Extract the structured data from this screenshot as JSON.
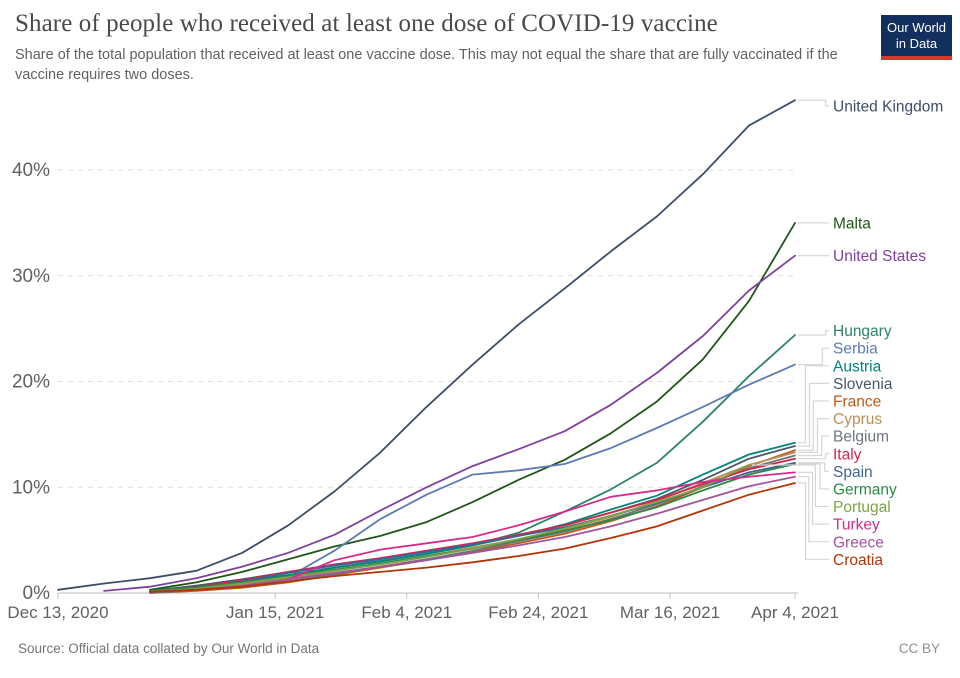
{
  "header": {
    "title": "Share of people who received at least one dose of COVID-19 vaccine",
    "subtitle": "Share of the total population that received at least one vaccine dose. This may not equal the share that are fully vaccinated if the vaccine requires two doses.",
    "logo": {
      "line1": "Our World",
      "line2": "in Data",
      "bg_color": "#12305E",
      "accent_color": "#D7382C"
    }
  },
  "chart_data": {
    "type": "line",
    "title": "Share of people who received at least one dose of COVID-19 vaccine",
    "xlabel": "",
    "ylabel": "",
    "ylim": [
      0,
      47
    ],
    "grid": "horizontal-dashed",
    "legend_position": "right-edge-labels",
    "x_days": [
      0,
      7,
      14,
      21,
      28,
      35,
      42,
      49,
      56,
      63,
      70,
      77,
      84,
      91,
      98,
      105,
      112
    ],
    "x_ticks": [
      {
        "label": "Dec 13, 2020",
        "day": 0
      },
      {
        "label": "Jan 15, 2021",
        "day": 33
      },
      {
        "label": "Feb 4, 2021",
        "day": 53
      },
      {
        "label": "Feb 24, 2021",
        "day": 73
      },
      {
        "label": "Mar 16, 2021",
        "day": 93
      },
      {
        "label": "Apr 4, 2021",
        "day": 112
      }
    ],
    "y_ticks": [
      {
        "label": "0%",
        "value": 0
      },
      {
        "label": "10%",
        "value": 10
      },
      {
        "label": "20%",
        "value": 20
      },
      {
        "label": "30%",
        "value": 30
      },
      {
        "label": "40%",
        "value": 40
      }
    ],
    "series": [
      {
        "name": "United Kingdom",
        "color": "#3C4E66",
        "values": [
          0.3,
          0.9,
          1.4,
          2.1,
          3.8,
          6.4,
          9.6,
          13.3,
          17.6,
          21.6,
          25.4,
          28.8,
          32.3,
          35.6,
          39.6,
          44.2,
          46.6
        ]
      },
      {
        "name": "Malta",
        "color": "#1F5717",
        "values": [
          null,
          null,
          0.3,
          1.0,
          2.0,
          3.2,
          4.4,
          5.4,
          6.7,
          8.6,
          10.7,
          12.6,
          15.1,
          18.1,
          22.1,
          27.6,
          35.0
        ]
      },
      {
        "name": "United States",
        "color": "#8040A0",
        "values": [
          null,
          0.2,
          0.6,
          1.4,
          2.5,
          3.8,
          5.5,
          7.8,
          10.0,
          12.0,
          13.6,
          15.3,
          17.8,
          20.8,
          24.3,
          28.6,
          31.9
        ]
      },
      {
        "name": "Hungary",
        "color": "#2C8465",
        "values": [
          null,
          null,
          0.2,
          0.6,
          1.1,
          1.7,
          2.4,
          3.0,
          3.7,
          4.5,
          5.7,
          7.7,
          9.8,
          12.3,
          16.2,
          20.5,
          24.4
        ]
      },
      {
        "name": "Serbia",
        "color": "#5E7CB2",
        "values": [
          null,
          null,
          0.2,
          0.5,
          0.8,
          1.5,
          4.0,
          7.0,
          9.3,
          11.2,
          11.6,
          12.2,
          13.7,
          15.6,
          17.6,
          19.7,
          21.6
        ]
      },
      {
        "name": "Austria",
        "color": "#00847E",
        "values": [
          null,
          null,
          0.2,
          0.6,
          1.1,
          1.7,
          2.4,
          3.0,
          3.7,
          4.5,
          5.4,
          6.5,
          7.9,
          9.2,
          11.2,
          13.1,
          14.2
        ]
      },
      {
        "name": "Slovenia",
        "color": "#4B5966",
        "values": [
          null,
          null,
          0.2,
          0.7,
          1.3,
          2.0,
          2.6,
          3.2,
          3.9,
          4.6,
          5.5,
          6.4,
          7.6,
          8.9,
          10.7,
          12.7,
          13.9
        ]
      },
      {
        "name": "France",
        "color": "#C05917",
        "values": [
          null,
          null,
          0.0,
          0.2,
          0.5,
          1.0,
          1.7,
          2.4,
          3.1,
          3.9,
          4.7,
          5.6,
          6.8,
          8.2,
          10.0,
          12.0,
          13.5
        ]
      },
      {
        "name": "Cyprus",
        "color": "#BC8E5A",
        "values": [
          null,
          null,
          0.1,
          0.4,
          0.8,
          1.4,
          2.1,
          2.8,
          3.5,
          4.3,
          5.1,
          6.0,
          7.2,
          8.7,
          10.4,
          12.1,
          13.3
        ]
      },
      {
        "name": "Belgium",
        "color": "#6E7581",
        "values": [
          null,
          null,
          0.0,
          0.3,
          0.6,
          1.1,
          1.8,
          2.5,
          3.2,
          4.0,
          4.9,
          5.8,
          7.0,
          8.4,
          10.1,
          11.8,
          13.0
        ]
      },
      {
        "name": "Italy",
        "color": "#D2264B",
        "values": [
          null,
          null,
          0.1,
          0.5,
          1.2,
          2.0,
          2.7,
          3.3,
          4.0,
          4.7,
          5.5,
          6.4,
          7.6,
          8.8,
          10.3,
          11.7,
          12.7
        ]
      },
      {
        "name": "Spain",
        "color": "#3D6498",
        "values": [
          null,
          null,
          0.1,
          0.4,
          1.1,
          1.9,
          2.6,
          3.2,
          3.9,
          4.6,
          5.4,
          6.2,
          7.3,
          8.5,
          10.0,
          11.4,
          12.3
        ]
      },
      {
        "name": "Germany",
        "color": "#2E8A46",
        "values": [
          null,
          null,
          0.2,
          0.5,
          1.0,
          1.6,
          2.2,
          2.8,
          3.5,
          4.2,
          5.0,
          5.9,
          6.9,
          8.1,
          9.7,
          11.2,
          12.2
        ]
      },
      {
        "name": "Portugal",
        "color": "#7CA343",
        "values": [
          null,
          null,
          0.1,
          0.4,
          0.9,
          1.5,
          2.1,
          2.7,
          3.4,
          4.2,
          5.1,
          6.1,
          7.3,
          8.6,
          10.0,
          12.1,
          null
        ]
      },
      {
        "name": "Turkey",
        "color": "#D42C8C",
        "values": [
          null,
          null,
          null,
          null,
          null,
          1.3,
          3.1,
          4.1,
          4.7,
          5.3,
          6.4,
          7.7,
          9.1,
          9.7,
          10.5,
          11.0,
          11.4
        ]
      },
      {
        "name": "Greece",
        "color": "#A2559C",
        "values": [
          null,
          null,
          0.1,
          0.3,
          0.7,
          1.3,
          1.9,
          2.5,
          3.1,
          3.8,
          4.5,
          5.3,
          6.3,
          7.5,
          8.8,
          10.1,
          11.0
        ]
      },
      {
        "name": "Croatia",
        "color": "#B13507",
        "values": [
          null,
          null,
          0.1,
          0.3,
          0.6,
          1.1,
          1.6,
          2.0,
          2.4,
          2.9,
          3.5,
          4.2,
          5.2,
          6.3,
          7.8,
          9.3,
          10.4
        ]
      }
    ]
  },
  "footer": {
    "source": "Source: Official data collated by Our World in Data",
    "license": "CC BY"
  }
}
